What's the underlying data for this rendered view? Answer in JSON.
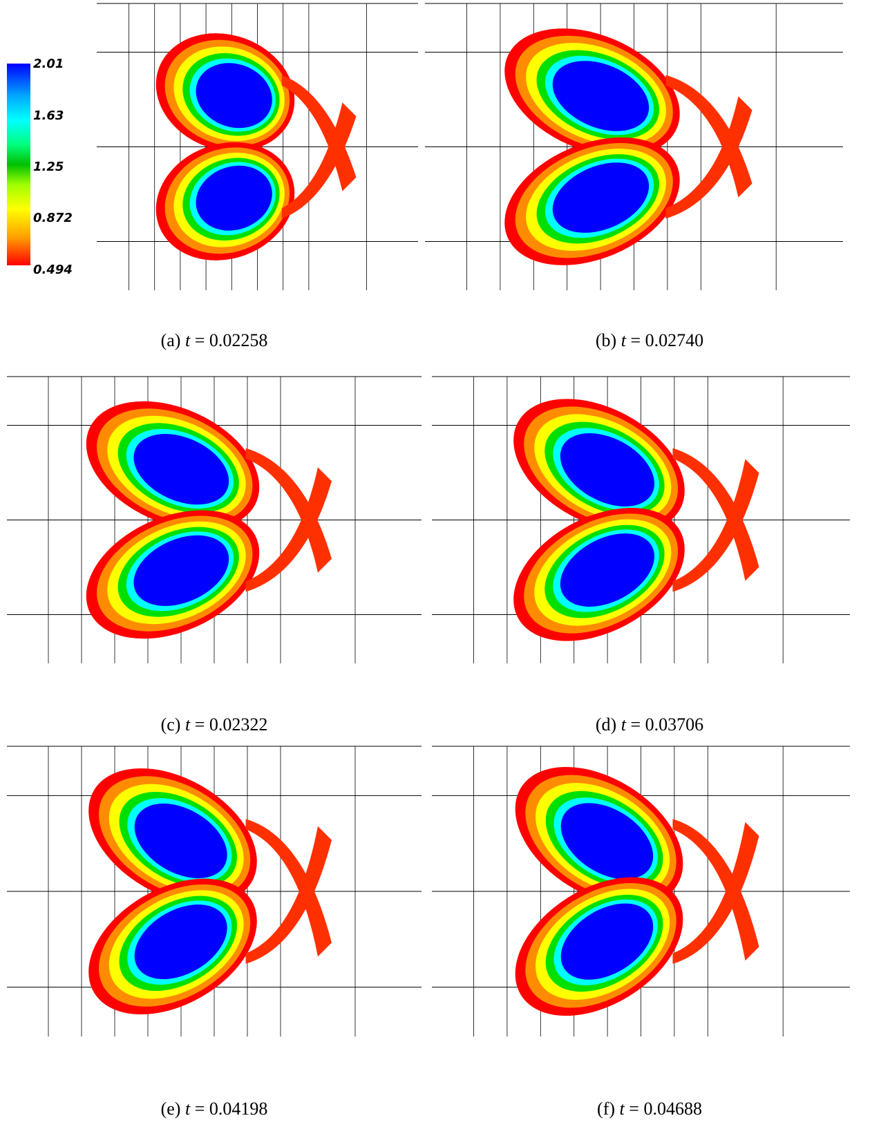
{
  "colorbar": {
    "labels": [
      "2.01",
      "1.63",
      "1.25",
      "0.872",
      "0.494"
    ],
    "colors": [
      "#0000ff",
      "#00ffff",
      "#00c000",
      "#ffff00",
      "#ff0000"
    ]
  },
  "panels": [
    {
      "id": "a",
      "label": "(a)",
      "t": "0.02258"
    },
    {
      "id": "b",
      "label": "(b)",
      "t": "0.02740"
    },
    {
      "id": "c",
      "label": "(c)",
      "t": "0.02322"
    },
    {
      "id": "d",
      "label": "(d)",
      "t": "0.03706"
    },
    {
      "id": "e",
      "label": "(e)",
      "t": "0.04198"
    },
    {
      "id": "f",
      "label": "(f)",
      "t": "0.04688"
    }
  ],
  "equals": "="
}
